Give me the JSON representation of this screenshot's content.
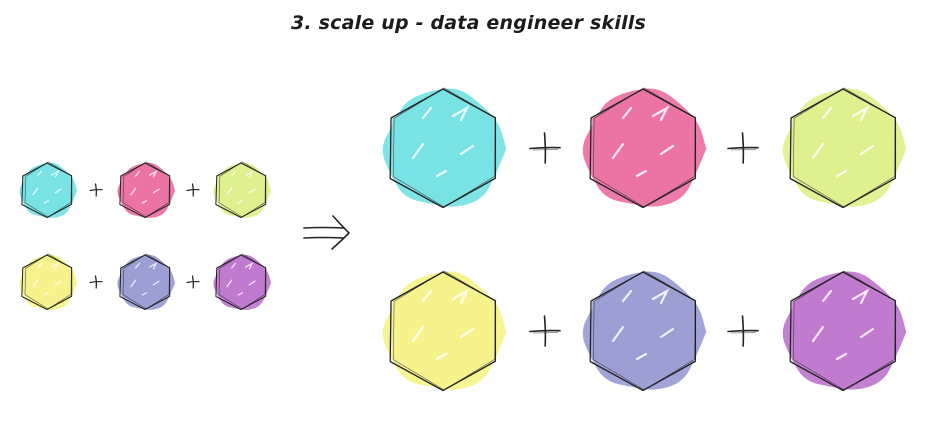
{
  "title": "3. scale up - data engineer skills",
  "palette": {
    "cyan": "#79e2e4",
    "pink": "#ec74a4",
    "lime": "#dff08f",
    "yellow": "#f7f38c",
    "periwinkle": "#9c9fd4",
    "purple": "#c07ad0",
    "ink": "#222222"
  },
  "small_grid": {
    "rows": [
      [
        "cyan",
        "pink",
        "lime"
      ],
      [
        "yellow",
        "periwinkle",
        "purple"
      ]
    ],
    "operator": "+"
  },
  "arrow": {
    "symbol": "implies",
    "icon": "double-arrow-right-icon"
  },
  "large_grid": {
    "rows": [
      [
        "cyan",
        "pink",
        "lime"
      ],
      [
        "yellow",
        "periwinkle",
        "purple"
      ]
    ],
    "operator": "+"
  }
}
